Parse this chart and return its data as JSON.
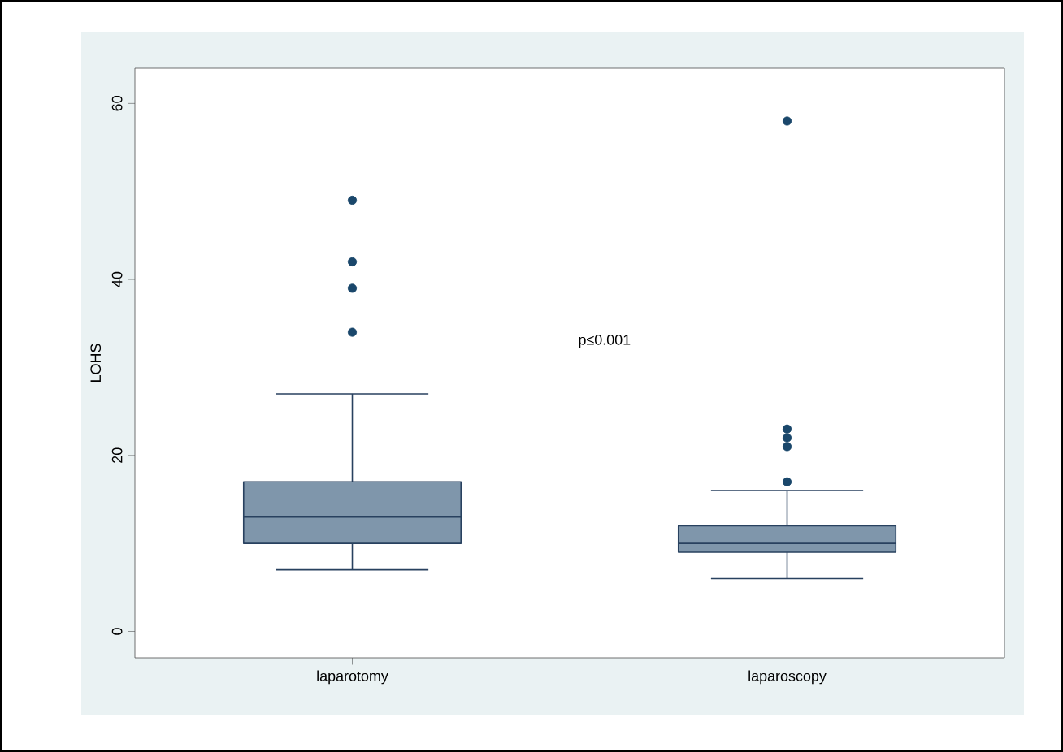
{
  "chart_data": {
    "type": "box",
    "categories": [
      "laparotomy",
      "laparoscopy"
    ],
    "ylabel": "LOHS",
    "ylim": [
      -3,
      64
    ],
    "yticks": [
      0,
      20,
      40,
      60
    ],
    "marker": "circle",
    "series": [
      {
        "color": "#7f96ab",
        "boxes": [
          {
            "low": 7,
            "q1": 10,
            "median": 13,
            "q3": 17,
            "high": 27,
            "outliers": [
              34,
              39,
              42,
              49
            ]
          },
          {
            "low": 6,
            "q1": 9,
            "median": 10,
            "q3": 12,
            "high": 16,
            "outliers": [
              17,
              21,
              22,
              23,
              58
            ]
          }
        ]
      }
    ],
    "annotations": [
      "p≤0.001"
    ]
  }
}
